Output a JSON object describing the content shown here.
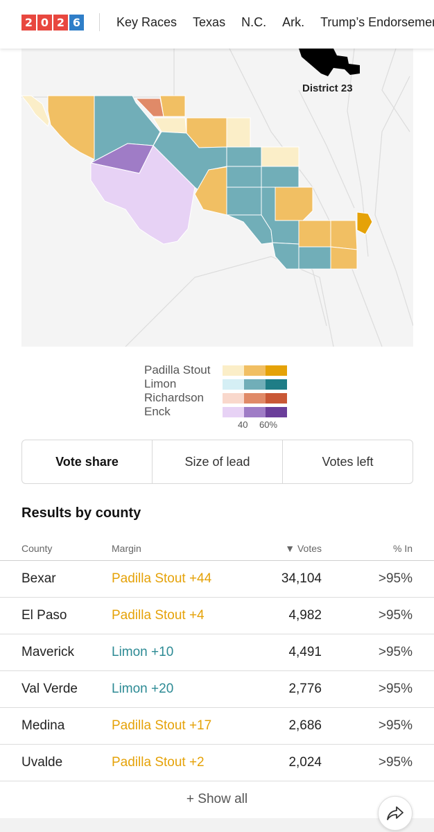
{
  "nav": {
    "logo_digits": [
      "2",
      "0",
      "2",
      "6"
    ],
    "links": [
      "Key Races",
      "Texas",
      "N.C.",
      "Ark.",
      "Trump’s Endorsements"
    ]
  },
  "map": {
    "district_label": "District 23"
  },
  "legend": {
    "candidates": [
      {
        "name": "Padilla Stout",
        "colors": [
          "#fbeec8",
          "#f1bf63",
          "#e5a208"
        ]
      },
      {
        "name": "Limon",
        "colors": [
          "#d5eff5",
          "#71aeb8",
          "#1f7d86"
        ]
      },
      {
        "name": "Richardson",
        "colors": [
          "#f9d8cc",
          "#e08a68",
          "#c95836"
        ]
      },
      {
        "name": "Enck",
        "colors": [
          "#e7d2f5",
          "#9f7cc6",
          "#6b3e9a"
        ]
      }
    ],
    "tick_low": "40",
    "tick_high": "60%"
  },
  "toggle": {
    "options": [
      "Vote share",
      "Size of lead",
      "Votes left"
    ],
    "active_index": 0
  },
  "results": {
    "title": "Results by county",
    "headers": {
      "county": "County",
      "margin": "Margin",
      "votes": "▼ Votes",
      "pct": "% In"
    },
    "rows": [
      {
        "county": "Bexar",
        "margin": "Padilla Stout +44",
        "votes": "34,104",
        "pct": ">95%",
        "color": "#e5a208"
      },
      {
        "county": "El Paso",
        "margin": "Padilla Stout +4",
        "votes": "4,982",
        "pct": ">95%",
        "color": "#e5a208"
      },
      {
        "county": "Maverick",
        "margin": "Limon +10",
        "votes": "4,491",
        "pct": ">95%",
        "color": "#2c8a94"
      },
      {
        "county": "Val Verde",
        "margin": "Limon +20",
        "votes": "2,776",
        "pct": ">95%",
        "color": "#2c8a94"
      },
      {
        "county": "Medina",
        "margin": "Padilla Stout +17",
        "votes": "2,686",
        "pct": ">95%",
        "color": "#e5a208"
      },
      {
        "county": "Uvalde",
        "margin": "Padilla Stout +2",
        "votes": "2,024",
        "pct": ">95%",
        "color": "#e5a208"
      }
    ],
    "show_all": "+ Show all"
  }
}
